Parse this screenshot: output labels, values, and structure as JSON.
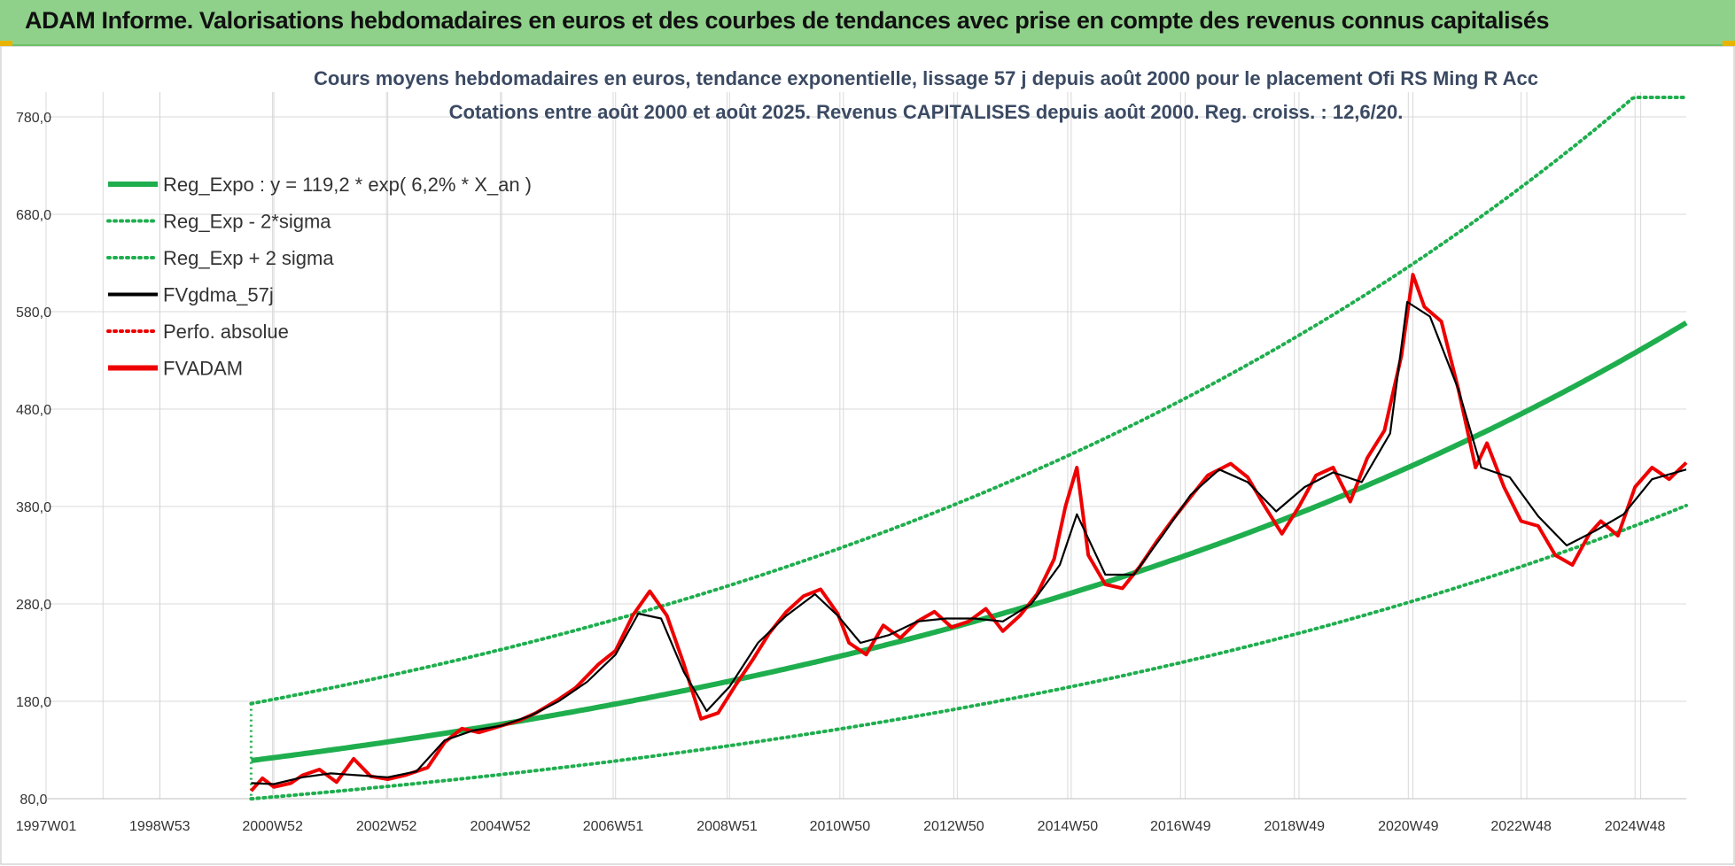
{
  "banner": {
    "title": "ADAM Informe. Valorisations hebdomadaires en euros et des courbes de tendances avec prise en compte des revenus connus capitalisés"
  },
  "colors": {
    "banner_bg": "#8fd18a",
    "regression": "#1fae4e",
    "smoothed": "#000000",
    "fvadam": "#ee0000",
    "perfo": "#ee0000",
    "grid": "#d9d9d9"
  },
  "chart_data": {
    "type": "line",
    "title_lines": [
      "Cours moyens hebdomadaires en euros, tendance exponentielle, lissage 57 j depuis août 2000 pour le placement Ofi RS Ming R Acc",
      "Cotations entre août 2000 et août 2025. Revenus CAPITALISES depuis août 2000. Reg. croiss. : 12,6/20."
    ],
    "xlabel": "",
    "ylabel": "",
    "ylim": [
      80,
      800
    ],
    "y_ticks": [
      "80,0",
      "180,0",
      "280,0",
      "380,0",
      "480,0",
      "580,0",
      "680,0",
      "780,0"
    ],
    "x_ticks": [
      "1997W01",
      "1998W53",
      "2000W52",
      "2002W52",
      "2004W52",
      "2006W51",
      "2008W51",
      "2010W50",
      "2012W50",
      "2014W50",
      "2016W49",
      "2018W49",
      "2020W49",
      "2022W48",
      "2024W48"
    ],
    "xlim": [
      1997.0,
      2025.8
    ],
    "grid": true,
    "legend_position": "top-left",
    "legend": [
      {
        "label": "Reg_Expo : y = 119,2 * exp( 6,2% *  X_an )",
        "style": "solid-thick",
        "color": "#1fae4e"
      },
      {
        "label": "Reg_Exp - 2*sigma",
        "style": "dotted",
        "color": "#1fae4e"
      },
      {
        "label": "Reg_Exp + 2 sigma",
        "style": "dotted",
        "color": "#1fae4e"
      },
      {
        "label": "FVgdma_57j",
        "style": "solid",
        "color": "#000000"
      },
      {
        "label": "Perfo. absolue",
        "style": "dotted",
        "color": "#ee0000"
      },
      {
        "label": "FVADAM",
        "style": "solid-thick",
        "color": "#ee0000"
      }
    ],
    "regression": {
      "a": 119.2,
      "rate": 0.062,
      "start": 2000.6,
      "end": 2025.8,
      "sigma_factor_upper": 1.49,
      "sigma_factor_lower": 0.67,
      "cap": 800
    },
    "series": [
      {
        "name": "FVADAM",
        "x": [
          2000.6,
          2000.8,
          2001.0,
          2001.3,
          2001.5,
          2001.8,
          2002.1,
          2002.4,
          2002.7,
          2003.0,
          2003.3,
          2003.7,
          2004.0,
          2004.3,
          2004.6,
          2005.0,
          2005.3,
          2005.6,
          2006.0,
          2006.3,
          2006.7,
          2007.0,
          2007.3,
          2007.6,
          2007.9,
          2008.2,
          2008.5,
          2008.8,
          2009.1,
          2009.4,
          2009.7,
          2010.0,
          2010.3,
          2010.6,
          2010.9,
          2011.1,
          2011.4,
          2011.7,
          2012.0,
          2012.3,
          2012.6,
          2012.9,
          2013.2,
          2013.5,
          2013.8,
          2014.1,
          2014.4,
          2014.7,
          2014.9,
          2015.1,
          2015.3,
          2015.6,
          2015.9,
          2016.2,
          2016.5,
          2016.8,
          2017.1,
          2017.4,
          2017.8,
          2018.1,
          2018.4,
          2018.7,
          2019.0,
          2019.3,
          2019.6,
          2019.9,
          2020.2,
          2020.5,
          2020.8,
          2021.0,
          2021.2,
          2021.5,
          2021.8,
          2022.1,
          2022.3,
          2022.6,
          2022.9,
          2023.2,
          2023.5,
          2023.8,
          2024.1,
          2024.3,
          2024.6,
          2024.9,
          2025.2,
          2025.5,
          2025.8
        ],
        "y": [
          88,
          101,
          92,
          96,
          104,
          110,
          97,
          121,
          103,
          100,
          104,
          112,
          138,
          152,
          148,
          155,
          160,
          168,
          182,
          194,
          218,
          232,
          268,
          293,
          268,
          218,
          162,
          168,
          196,
          222,
          250,
          272,
          288,
          295,
          270,
          240,
          228,
          258,
          245,
          262,
          272,
          256,
          262,
          275,
          252,
          268,
          290,
          326,
          380,
          420,
          330,
          300,
          296,
          318,
          344,
          368,
          390,
          412,
          424,
          410,
          380,
          352,
          380,
          412,
          420,
          385,
          430,
          458,
          535,
          618,
          585,
          570,
          500,
          420,
          445,
          400,
          365,
          360,
          330,
          320,
          352,
          365,
          350,
          400,
          420,
          408,
          425
        ]
      },
      {
        "name": "FVgdma_57j",
        "x": [
          2000.6,
          2001.0,
          2001.5,
          2002.0,
          2002.5,
          2003.0,
          2003.5,
          2004.0,
          2004.5,
          2005.0,
          2005.5,
          2006.0,
          2006.5,
          2007.0,
          2007.4,
          2007.8,
          2008.2,
          2008.6,
          2009.0,
          2009.5,
          2010.0,
          2010.5,
          2010.9,
          2011.3,
          2011.8,
          2012.3,
          2012.8,
          2013.3,
          2013.8,
          2014.3,
          2014.8,
          2015.1,
          2015.6,
          2016.1,
          2016.6,
          2017.1,
          2017.6,
          2018.1,
          2018.6,
          2019.1,
          2019.6,
          2020.1,
          2020.6,
          2020.9,
          2021.3,
          2021.8,
          2022.2,
          2022.7,
          2023.2,
          2023.7,
          2024.2,
          2024.7,
          2025.2,
          2025.8
        ],
        "y": [
          96,
          95,
          102,
          106,
          104,
          102,
          108,
          140,
          150,
          155,
          165,
          180,
          200,
          228,
          270,
          265,
          210,
          170,
          195,
          240,
          268,
          290,
          268,
          240,
          248,
          262,
          265,
          265,
          262,
          280,
          320,
          372,
          310,
          310,
          350,
          392,
          418,
          405,
          375,
          400,
          415,
          405,
          455,
          590,
          575,
          500,
          420,
          410,
          370,
          340,
          355,
          372,
          408,
          418
        ]
      }
    ]
  }
}
